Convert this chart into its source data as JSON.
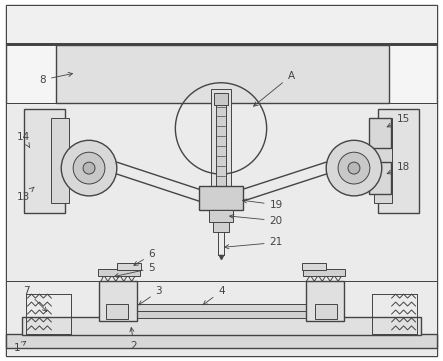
{
  "bg_outer": "#f0f0f0",
  "bg_white": "#ffffff",
  "bg_light": "#ebebeb",
  "lc": "#444444",
  "gray_fill": "#d8d8d8",
  "mid_gray": "#c8c8c8",
  "dark_gray": "#b8b8b8",
  "top_panel_bg": "#e4e4e4",
  "mid_bg": "#e8e8e8"
}
